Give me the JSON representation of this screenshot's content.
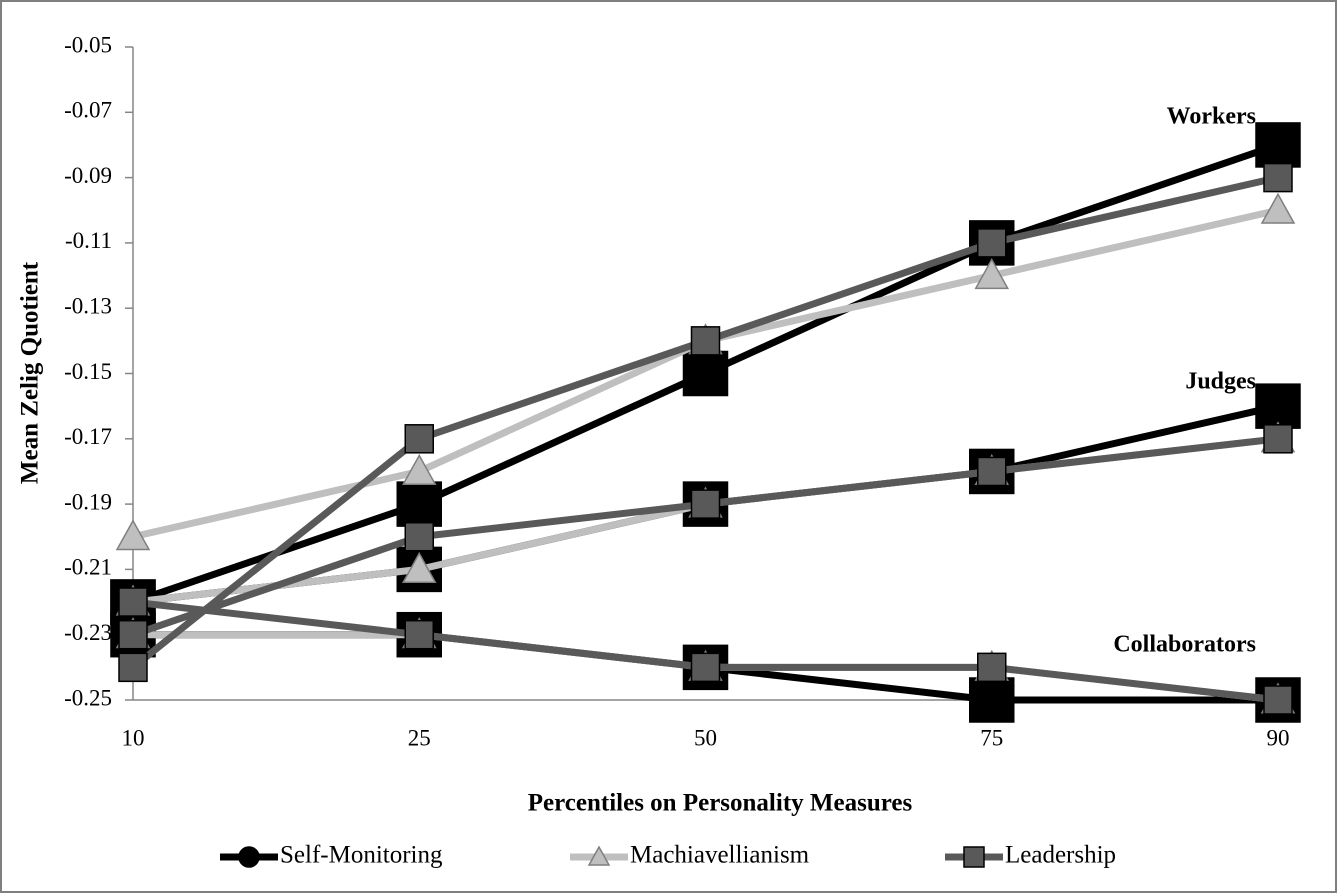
{
  "chart_data": {
    "type": "line",
    "x_label": "Percentiles on Personality Measures",
    "y_label": "Mean Zelig Quotient",
    "categories": [
      "10",
      "25",
      "50",
      "75",
      "90"
    ],
    "ylim": [
      -0.25,
      -0.05
    ],
    "yticks": [
      -0.25,
      -0.23,
      -0.21,
      -0.19,
      -0.17,
      -0.15,
      -0.13,
      -0.11,
      -0.09,
      -0.07,
      -0.05
    ],
    "series": [
      {
        "name": "Self-Monitoring",
        "color": "#000000",
        "marker": "square",
        "legend_marker": "circle"
      },
      {
        "name": "Machiavellianism",
        "color": "#bfbfbf",
        "marker": "triangle",
        "legend_marker": "triangle"
      },
      {
        "name": "Leadership",
        "color": "#595959",
        "marker": "square",
        "legend_marker": "square"
      }
    ],
    "groups": [
      {
        "label": "Workers",
        "values": [
          [
            -0.22,
            -0.19,
            -0.15,
            -0.11,
            -0.08
          ],
          [
            -0.2,
            -0.18,
            -0.14,
            -0.12,
            -0.1
          ],
          [
            -0.24,
            -0.17,
            -0.14,
            -0.11,
            -0.09
          ]
        ]
      },
      {
        "label": "Judges",
        "values": [
          [
            -0.22,
            -0.21,
            -0.19,
            -0.18,
            -0.16
          ],
          [
            -0.22,
            -0.21,
            -0.19,
            -0.18,
            -0.17
          ],
          [
            -0.23,
            -0.2,
            -0.19,
            -0.18,
            -0.17
          ]
        ]
      },
      {
        "label": "Collaborators",
        "values": [
          [
            -0.23,
            -0.23,
            -0.24,
            -0.25,
            -0.25
          ],
          [
            -0.23,
            -0.23,
            -0.24,
            -0.24,
            -0.25
          ],
          [
            -0.22,
            -0.23,
            -0.24,
            -0.24,
            -0.25
          ]
        ]
      }
    ]
  }
}
